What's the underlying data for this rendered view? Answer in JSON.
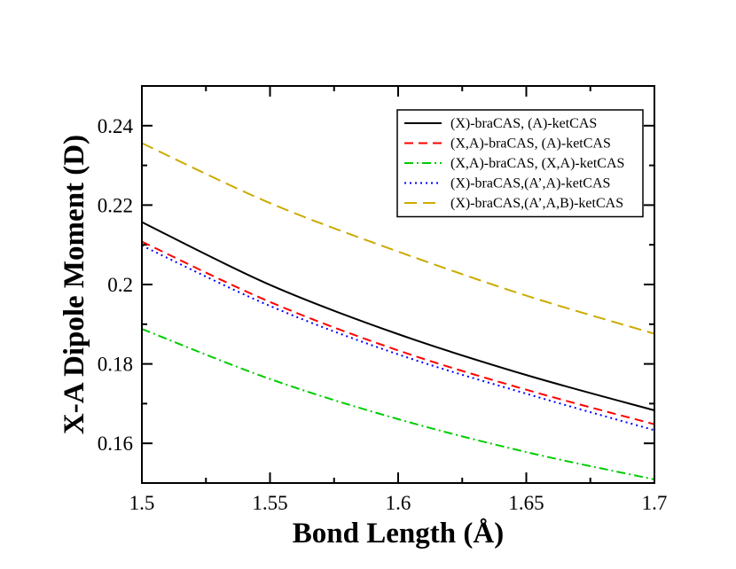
{
  "chart_data": {
    "type": "line",
    "title": "",
    "xlabel": "Bond Length (Å)",
    "ylabel": "X-A Dipole Moment (D)",
    "xlim": [
      1.5,
      1.7
    ],
    "ylim": [
      0.15,
      0.25
    ],
    "xticks": [
      1.5,
      1.55,
      1.6,
      1.65,
      1.7
    ],
    "xtick_labels": [
      "1.5",
      "1.55",
      "1.6",
      "1.65",
      "1.7"
    ],
    "yticks": [
      0.16,
      0.18,
      0.2,
      0.22,
      0.24
    ],
    "ytick_labels": [
      "0.16",
      "0.18",
      "0.2",
      "0.22",
      "0.24"
    ],
    "grid": false,
    "legend_position": "top-right",
    "x": [
      1.5,
      1.55,
      1.6,
      1.65,
      1.7
    ],
    "series": [
      {
        "name": "(X)-braCAS, (A)-ketCAS",
        "color": "#000000",
        "style": "solid",
        "values": [
          0.2157,
          0.1999,
          0.1875,
          0.1772,
          0.1683
        ]
      },
      {
        "name": "(X,A)-braCAS, (A)-ketCAS",
        "color": "#ff0000",
        "style": "dashed",
        "values": [
          0.2108,
          0.1956,
          0.1834,
          0.1735,
          0.1648
        ]
      },
      {
        "name": "(X,A)-braCAS, (X,A)-ketCAS",
        "color": "#00cc00",
        "style": "dashdot",
        "values": [
          0.1888,
          0.1762,
          0.1661,
          0.1578,
          0.1509
        ]
      },
      {
        "name": "(X)-braCAS,(A’,A)-ketCAS",
        "color": "#0000ff",
        "style": "dotted",
        "values": [
          0.2098,
          0.1946,
          0.1824,
          0.1725,
          0.1633
        ]
      },
      {
        "name": "(X)-braCAS,(A’,A,B)-ketCAS",
        "color": "#ccaa00",
        "style": "longdash",
        "values": [
          0.2356,
          0.2205,
          0.2083,
          0.1972,
          0.1876
        ]
      }
    ]
  }
}
